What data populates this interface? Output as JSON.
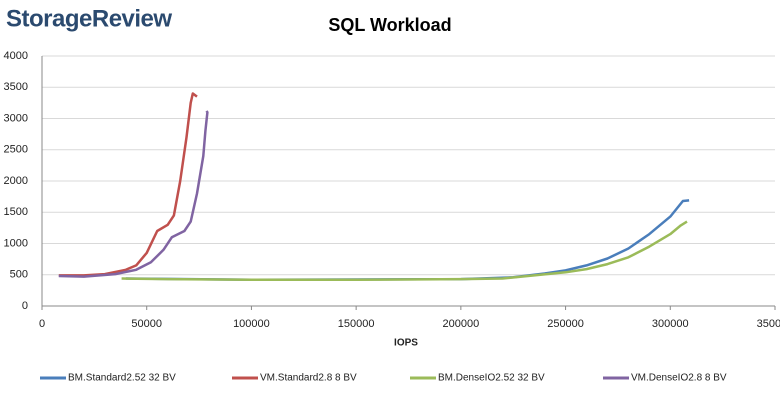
{
  "logo": "StorageReview",
  "chart_data": {
    "type": "line",
    "title": "SQL Workload",
    "x_label": "IOPS",
    "xlim": [
      0,
      350000
    ],
    "xticks": [
      0,
      50000,
      100000,
      150000,
      200000,
      250000,
      300000,
      350000
    ],
    "ylim": [
      0,
      4000
    ],
    "yticks": [
      0,
      500,
      1000,
      1500,
      2000,
      2500,
      3000,
      3500,
      4000
    ],
    "grid": true,
    "legend": "bottom",
    "series": [
      {
        "name": "BM.Standard2.52 32 BV",
        "color": "#4a7ebb",
        "x": [
          40000,
          100000,
          200000,
          225000,
          240000,
          250000,
          260000,
          270000,
          280000,
          290000,
          300000,
          306000,
          309000
        ],
        "values": [
          440,
          420,
          430,
          460,
          520,
          570,
          650,
          760,
          920,
          1150,
          1430,
          1680,
          1690
        ]
      },
      {
        "name": "VM.Standard2.8 8 BV",
        "color": "#c0504d",
        "x": [
          8000,
          20000,
          30000,
          40000,
          45000,
          50000,
          55000,
          60000,
          63000,
          66000,
          69000,
          71000,
          72000,
          74000
        ],
        "values": [
          490,
          490,
          510,
          580,
          650,
          850,
          1200,
          1300,
          1450,
          2000,
          2700,
          3250,
          3400,
          3350
        ]
      },
      {
        "name": "BM.DenseIO2.52 32 BV",
        "color": "#9bbb59",
        "x": [
          38000,
          60000,
          100000,
          150000,
          200000,
          220000,
          235000,
          250000,
          260000,
          270000,
          280000,
          290000,
          300000,
          305000,
          308000
        ],
        "values": [
          440,
          430,
          420,
          420,
          430,
          440,
          490,
          540,
          590,
          670,
          780,
          950,
          1150,
          1290,
          1350
        ]
      },
      {
        "name": "VM.DenseIO2.8 8 BV",
        "color": "#8064a2",
        "x": [
          8000,
          20000,
          35000,
          45000,
          52000,
          58000,
          62000,
          68000,
          71000,
          74000,
          77000,
          78000,
          79000,
          78500
        ],
        "values": [
          480,
          470,
          510,
          580,
          700,
          900,
          1100,
          1200,
          1350,
          1800,
          2400,
          2800,
          3100,
          3120
        ]
      }
    ]
  }
}
